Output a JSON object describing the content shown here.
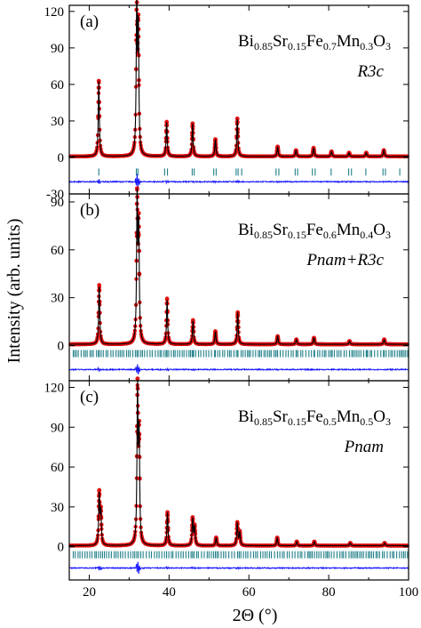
{
  "chart_data": {
    "type": "scatter",
    "xlabel": "2Θ (°)",
    "ylabel": "Intensity (arb. units)",
    "xlim": [
      15,
      100
    ],
    "xticks": [
      20,
      40,
      60,
      80,
      100
    ],
    "colors": {
      "observed": "#e01010",
      "calculated": "#000000",
      "difference": "#1a1aff",
      "bragg": "#1f7f88"
    },
    "panels": [
      {
        "label": "(a)",
        "composition": [
          "Bi",
          "0.85",
          "Sr",
          "0.15",
          "Fe",
          "0.7",
          "Mn",
          "0.3",
          "O",
          "3"
        ],
        "phase": "R3c",
        "ylim": [
          -30,
          125
        ],
        "yticks": [
          -30,
          0,
          30,
          60,
          90,
          120
        ],
        "ytick_labels": [
          "-30",
          "0",
          "30",
          "60",
          "90",
          "120"
        ],
        "peaks": [
          {
            "x": 22.4,
            "y": 62
          },
          {
            "x": 31.9,
            "y": 120
          },
          {
            "x": 32.3,
            "y": 100
          },
          {
            "x": 39.4,
            "y": 28
          },
          {
            "x": 45.9,
            "y": 27
          },
          {
            "x": 51.6,
            "y": 14
          },
          {
            "x": 57.1,
            "y": 31
          },
          {
            "x": 67.2,
            "y": 8
          },
          {
            "x": 71.8,
            "y": 5
          },
          {
            "x": 76.2,
            "y": 7
          },
          {
            "x": 80.7,
            "y": 4
          },
          {
            "x": 85.1,
            "y": 3
          },
          {
            "x": 89.4,
            "y": 3
          },
          {
            "x": 93.8,
            "y": 5
          }
        ],
        "bragg_y": -12,
        "bragg_positions": [
          22.4,
          31.8,
          32.2,
          38.9,
          39.6,
          45.8,
          46.3,
          51.2,
          51.8,
          56.8,
          57.3,
          58.2,
          66.8,
          67.5,
          71.6,
          72.2,
          75.9,
          76.6,
          80.6,
          85.0,
          85.7,
          89.3,
          93.6,
          94.2,
          97.8
        ],
        "diff_y": -20
      },
      {
        "label": "(b)",
        "composition": [
          "Bi",
          "0.85",
          "Sr",
          "0.15",
          "Fe",
          "0.6",
          "Mn",
          "0.4",
          "O",
          "3"
        ],
        "phase": "Pnam+R3c",
        "ylim": [
          -22,
          95
        ],
        "yticks": [
          0,
          30,
          60,
          90
        ],
        "ytick_labels": [
          "0",
          "30",
          "60",
          "90"
        ],
        "peaks": [
          {
            "x": 22.5,
            "y": 37
          },
          {
            "x": 32.0,
            "y": 88
          },
          {
            "x": 32.4,
            "y": 70
          },
          {
            "x": 39.5,
            "y": 28
          },
          {
            "x": 46.0,
            "y": 15
          },
          {
            "x": 51.6,
            "y": 8
          },
          {
            "x": 57.2,
            "y": 20
          },
          {
            "x": 67.2,
            "y": 5
          },
          {
            "x": 71.9,
            "y": 3
          },
          {
            "x": 76.3,
            "y": 4
          },
          {
            "x": 85.2,
            "y": 2
          },
          {
            "x": 93.9,
            "y": 3
          }
        ],
        "bragg_y": -5,
        "bragg_positions": [
          22.5,
          32.0,
          39.5,
          46.0,
          51.6,
          57.2,
          67.2,
          71.9,
          76.3,
          80.8,
          85.2,
          89.5,
          93.9,
          98.1
        ],
        "bragg_dense_from": 15,
        "diff_y": -15
      },
      {
        "label": "(c)",
        "composition": [
          "Bi",
          "0.85",
          "Sr",
          "0.15",
          "Fe",
          "0.5",
          "Mn",
          "0.5",
          "O",
          "3"
        ],
        "phase": "Pnam",
        "ylim": [
          -25,
          125
        ],
        "yticks": [
          0,
          30,
          60,
          90,
          120
        ],
        "ytick_labels": [
          "0",
          "30",
          "60",
          "90",
          "120"
        ],
        "peaks": [
          {
            "x": 22.5,
            "y": 38
          },
          {
            "x": 22.9,
            "y": 24
          },
          {
            "x": 32.1,
            "y": 115
          },
          {
            "x": 32.5,
            "y": 78
          },
          {
            "x": 39.6,
            "y": 25
          },
          {
            "x": 45.9,
            "y": 20
          },
          {
            "x": 46.4,
            "y": 14
          },
          {
            "x": 51.8,
            "y": 6
          },
          {
            "x": 57.1,
            "y": 17
          },
          {
            "x": 57.7,
            "y": 10
          },
          {
            "x": 67.1,
            "y": 6
          },
          {
            "x": 72.0,
            "y": 3
          },
          {
            "x": 76.4,
            "y": 3
          },
          {
            "x": 85.4,
            "y": 2
          },
          {
            "x": 94.0,
            "y": 2
          }
        ],
        "bragg_y": -6,
        "bragg_dense_from": 15,
        "diff_y": -16
      }
    ]
  }
}
